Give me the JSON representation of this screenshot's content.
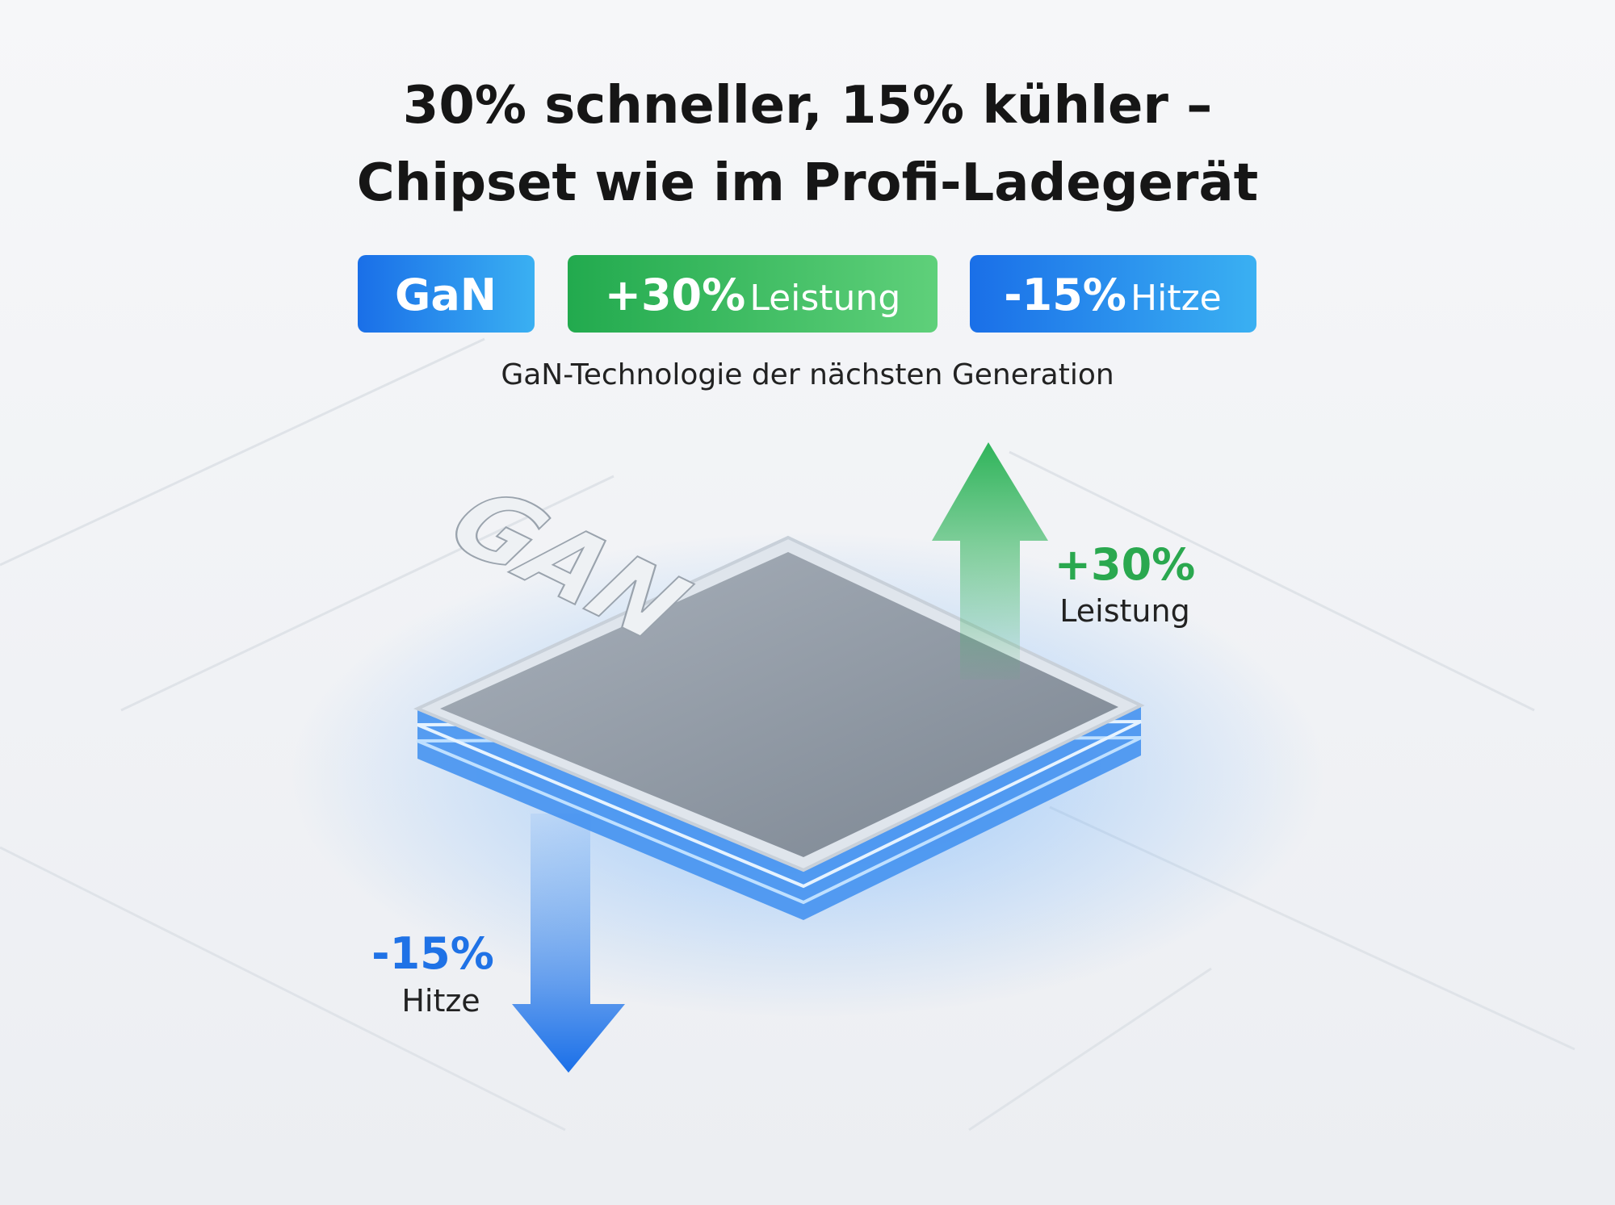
{
  "header": {
    "title_lines": [
      "30% schneller, 15% kühler –",
      "Chipset wie im Profi-Ladegerät"
    ]
  },
  "badges": [
    {
      "bold": "GaN"
    },
    {
      "bold": "+30%",
      "text": "Leistung"
    },
    {
      "bold": "-15%",
      "text": "Hitze"
    }
  ],
  "subtitle": "GaN-Technologie der nächsten Generation",
  "chip": {
    "label": "GAN"
  },
  "callouts": [
    {
      "bold": "+30%",
      "text": "Leistung"
    },
    {
      "bold": "-15%",
      "text": "Hitze"
    }
  ]
}
